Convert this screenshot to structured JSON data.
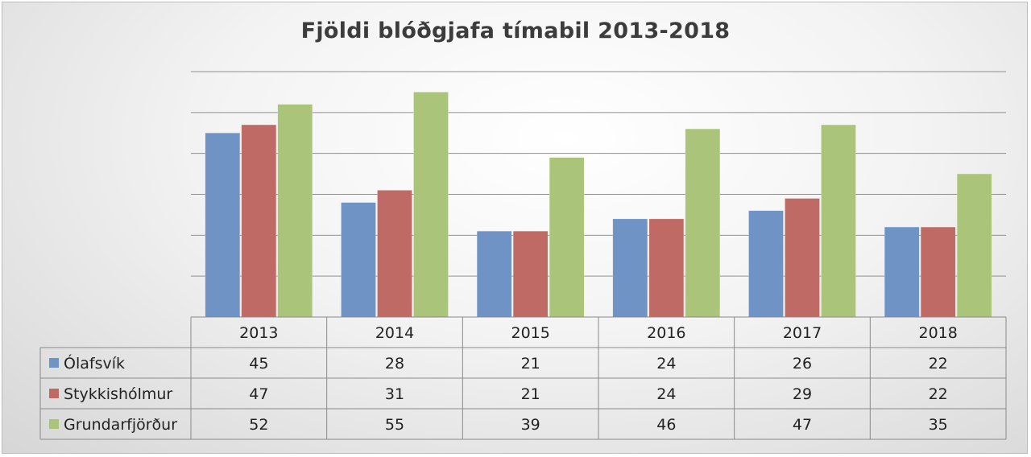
{
  "chart_data": {
    "type": "bar",
    "title": "Fjöldi blóðgjafa tímabil 2013-2018",
    "categories": [
      "2013",
      "2014",
      "2015",
      "2016",
      "2017",
      "2018"
    ],
    "series": [
      {
        "name": "Ólafsvík",
        "color": "#6f93c4",
        "values": [
          45,
          28,
          21,
          24,
          26,
          22
        ]
      },
      {
        "name": "Stykkishólmur",
        "color": "#c06a66",
        "values": [
          47,
          31,
          21,
          24,
          29,
          22
        ]
      },
      {
        "name": "Grundarfjörður",
        "color": "#aac57a",
        "values": [
          52,
          55,
          39,
          46,
          47,
          35
        ]
      }
    ],
    "ylim": [
      0,
      60
    ],
    "grid": true,
    "legend": "data-table-left"
  }
}
